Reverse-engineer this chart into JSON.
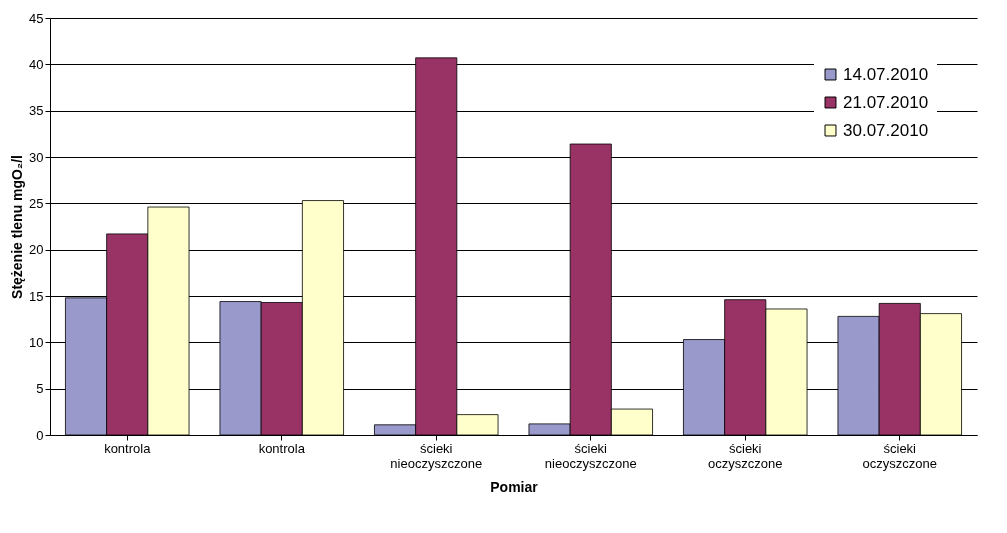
{
  "chart_data": {
    "type": "bar",
    "xlabel": "Pomiar",
    "ylabel": "Stężenie tlenu mgO₂/l",
    "categories": [
      "kontrola",
      "kontrola",
      "ścieki nieoczyszczone",
      "ścieki nieoczyszczone",
      "ścieki oczyszczone",
      "ścieki oczyszczone"
    ],
    "series": [
      {
        "name": "14.07.2010",
        "color": "#9999cc",
        "values": [
          14.8,
          14.4,
          1.1,
          1.2,
          10.3,
          12.8
        ]
      },
      {
        "name": "21.07.2010",
        "color": "#993366",
        "values": [
          21.7,
          14.3,
          40.7,
          31.4,
          14.6,
          14.2
        ]
      },
      {
        "name": "30.07.2010",
        "color": "#ffffcc",
        "values": [
          24.6,
          25.3,
          2.2,
          2.8,
          13.6,
          13.1
        ]
      }
    ],
    "ylim": [
      0,
      45
    ],
    "yticks": [
      0,
      5,
      10,
      15,
      20,
      25,
      30,
      35,
      40,
      45
    ],
    "grid": "y",
    "legend": "top right"
  }
}
